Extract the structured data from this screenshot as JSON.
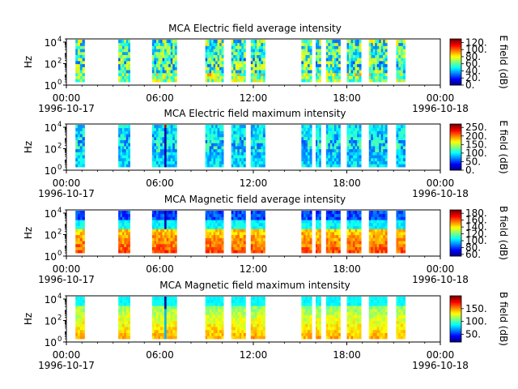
{
  "chart_data": [
    {
      "type": "heatmap",
      "title": "MCA  Electric field average intensity",
      "ylabel": "Hz",
      "y_scale": "log",
      "yticks": [
        {
          "base": "10",
          "exp": "0"
        },
        {
          "base": "10",
          "exp": "2"
        },
        {
          "base": "10",
          "exp": "4"
        }
      ],
      "ylim": [
        1,
        20000
      ],
      "xlim": [
        "1996-10-17 00:00",
        "1996-10-18 00:00"
      ],
      "xticks": [
        "00:00",
        "06:00",
        "12:00",
        "18:00",
        "00:00"
      ],
      "xdates": {
        "start": "1996-10-17",
        "end": "1996-10-18"
      },
      "colorbar": {
        "label": "E field (dB)",
        "ticks": [
          "0.",
          "20.",
          "40.",
          "60.",
          "80.",
          "100.",
          "120."
        ],
        "range": [
          0,
          130
        ]
      },
      "colormap": "jet",
      "data_intervals_utc": [
        [
          "00:35",
          "01:10"
        ],
        [
          "03:20",
          "04:05"
        ],
        [
          "05:30",
          "07:05"
        ],
        [
          "08:55",
          "10:05"
        ],
        [
          "10:35",
          "11:30"
        ],
        [
          "11:50",
          "12:45"
        ],
        [
          "15:05",
          "15:45"
        ],
        [
          "16:00",
          "16:20"
        ],
        [
          "16:40",
          "17:35"
        ],
        [
          "18:00",
          "18:55"
        ],
        [
          "19:25",
          "20:35"
        ],
        [
          "21:10",
          "21:45"
        ]
      ]
    },
    {
      "type": "heatmap",
      "title": "MCA  Electric field maximum intensity",
      "ylabel": "Hz",
      "y_scale": "log",
      "yticks": [
        {
          "base": "10",
          "exp": "0"
        },
        {
          "base": "10",
          "exp": "2"
        },
        {
          "base": "10",
          "exp": "4"
        }
      ],
      "ylim": [
        1,
        20000
      ],
      "xlim": [
        "1996-10-17 00:00",
        "1996-10-18 00:00"
      ],
      "xticks": [
        "00:00",
        "06:00",
        "12:00",
        "18:00",
        "00:00"
      ],
      "xdates": {
        "start": "1996-10-17",
        "end": "1996-10-18"
      },
      "colorbar": {
        "label": "E field (dB)",
        "ticks": [
          "0.",
          "50.",
          "100.",
          "150.",
          "200.",
          "250."
        ],
        "range": [
          0,
          270
        ]
      },
      "colormap": "jet",
      "data_intervals_utc": [
        [
          "00:35",
          "01:10"
        ],
        [
          "03:20",
          "04:05"
        ],
        [
          "05:30",
          "07:05"
        ],
        [
          "08:55",
          "10:05"
        ],
        [
          "10:35",
          "11:30"
        ],
        [
          "11:50",
          "12:45"
        ],
        [
          "15:05",
          "15:45"
        ],
        [
          "16:00",
          "16:20"
        ],
        [
          "16:40",
          "17:35"
        ],
        [
          "18:00",
          "18:55"
        ],
        [
          "19:25",
          "20:35"
        ],
        [
          "21:10",
          "21:45"
        ]
      ]
    },
    {
      "type": "heatmap",
      "title": "MCA  Magnetic field average intensity",
      "ylabel": "Hz",
      "y_scale": "log",
      "yticks": [
        {
          "base": "10",
          "exp": "0"
        },
        {
          "base": "10",
          "exp": "2"
        },
        {
          "base": "10",
          "exp": "4"
        }
      ],
      "ylim": [
        1,
        20000
      ],
      "xlim": [
        "1996-10-17 00:00",
        "1996-10-18 00:00"
      ],
      "xticks": [
        "00:00",
        "06:00",
        "12:00",
        "18:00",
        "00:00"
      ],
      "xdates": {
        "start": "1996-10-17",
        "end": "1996-10-18"
      },
      "colorbar": {
        "label": "B field (dB)",
        "ticks": [
          "60.",
          "80.",
          "100.",
          "120.",
          "140.",
          "160.",
          "180."
        ],
        "range": [
          55,
          190
        ]
      },
      "colormap": "jet",
      "data_intervals_utc": [
        [
          "00:35",
          "01:10"
        ],
        [
          "03:20",
          "04:05"
        ],
        [
          "05:30",
          "07:05"
        ],
        [
          "08:55",
          "10:05"
        ],
        [
          "10:35",
          "11:30"
        ],
        [
          "11:50",
          "12:45"
        ],
        [
          "15:05",
          "15:45"
        ],
        [
          "16:00",
          "16:20"
        ],
        [
          "16:40",
          "17:35"
        ],
        [
          "18:00",
          "18:55"
        ],
        [
          "19:25",
          "20:35"
        ],
        [
          "21:10",
          "21:45"
        ]
      ]
    },
    {
      "type": "heatmap",
      "title": "MCA  Magnetic field maximum intensity",
      "ylabel": "Hz",
      "y_scale": "log",
      "yticks": [
        {
          "base": "10",
          "exp": "0"
        },
        {
          "base": "10",
          "exp": "2"
        },
        {
          "base": "10",
          "exp": "4"
        }
      ],
      "ylim": [
        1,
        20000
      ],
      "xlim": [
        "1996-10-17 00:00",
        "1996-10-18 00:00"
      ],
      "xticks": [
        "00:00",
        "06:00",
        "12:00",
        "18:00",
        "00:00"
      ],
      "xdates": {
        "start": "1996-10-17",
        "end": "1996-10-18"
      },
      "colorbar": {
        "label": "B field (dB)",
        "ticks": [
          "50.",
          "100.",
          "150."
        ],
        "range": [
          20,
          200
        ]
      },
      "colormap": "jet",
      "data_intervals_utc": [
        [
          "00:35",
          "01:10"
        ],
        [
          "03:20",
          "04:05"
        ],
        [
          "05:30",
          "07:05"
        ],
        [
          "08:55",
          "10:05"
        ],
        [
          "10:35",
          "11:30"
        ],
        [
          "11:50",
          "12:45"
        ],
        [
          "15:05",
          "15:45"
        ],
        [
          "16:00",
          "16:20"
        ],
        [
          "16:40",
          "17:35"
        ],
        [
          "18:00",
          "18:55"
        ],
        [
          "19:25",
          "20:35"
        ],
        [
          "21:10",
          "21:45"
        ]
      ]
    }
  ]
}
